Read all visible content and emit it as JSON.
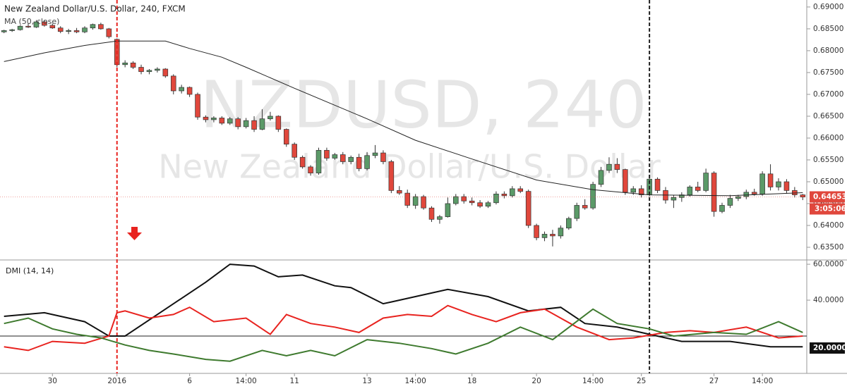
{
  "chart_data": [
    {
      "type": "candlestick",
      "title": "New Zealand Dollar/U.S. Dollar, 240, FXCM",
      "watermark": {
        "symbol": "NZDUSD, 240",
        "description": "New Zealand Dollar/U.S. Dollar"
      },
      "up_color": "#5b9a68",
      "down_color": "#e0473c",
      "open": [
        0.6843,
        0.6846,
        0.6848,
        0.6856,
        0.6854,
        0.6866,
        0.6858,
        0.6852,
        0.6844,
        0.6846,
        0.6843,
        0.6852,
        0.686,
        0.685,
        0.6826,
        0.6768,
        0.6772,
        0.6762,
        0.6752,
        0.6755,
        0.6758,
        0.6742,
        0.6708,
        0.6716,
        0.67,
        0.6648,
        0.6642,
        0.6646,
        0.6634,
        0.6644,
        0.6626,
        0.664,
        0.662,
        0.6644,
        0.665,
        0.662,
        0.6586,
        0.6556,
        0.6534,
        0.652,
        0.6572,
        0.6554,
        0.6562,
        0.6546,
        0.6556,
        0.653,
        0.656,
        0.6566,
        0.6546,
        0.648,
        0.6474,
        0.6446,
        0.6466,
        0.644,
        0.6414,
        0.642,
        0.645,
        0.6466,
        0.6456,
        0.6452,
        0.6444,
        0.6452,
        0.6472,
        0.6468,
        0.6484,
        0.6478,
        0.64,
        0.6372,
        0.638,
        0.6376,
        0.6394,
        0.6416,
        0.6446,
        0.644,
        0.6494,
        0.6526,
        0.654,
        0.6528,
        0.6476,
        0.6484,
        0.647,
        0.6506,
        0.648,
        0.6458,
        0.6464,
        0.647,
        0.6488,
        0.648,
        0.652,
        0.6432,
        0.6446,
        0.6462,
        0.6466,
        0.6476,
        0.6472,
        0.6518,
        0.6488,
        0.65,
        0.648,
        0.647
      ],
      "high": [
        0.6848,
        0.685,
        0.6858,
        0.6862,
        0.687,
        0.687,
        0.6862,
        0.6856,
        0.685,
        0.6852,
        0.6856,
        0.6862,
        0.6864,
        0.6852,
        0.6828,
        0.6778,
        0.6776,
        0.6768,
        0.6758,
        0.6762,
        0.676,
        0.6746,
        0.6722,
        0.6718,
        0.6704,
        0.6652,
        0.665,
        0.665,
        0.6648,
        0.6648,
        0.6646,
        0.665,
        0.6666,
        0.666,
        0.6652,
        0.6622,
        0.659,
        0.656,
        0.6538,
        0.6578,
        0.6578,
        0.6566,
        0.6568,
        0.656,
        0.6564,
        0.6568,
        0.6584,
        0.6572,
        0.655,
        0.649,
        0.6482,
        0.6472,
        0.647,
        0.6444,
        0.6424,
        0.6464,
        0.6472,
        0.6472,
        0.6464,
        0.6458,
        0.6456,
        0.6478,
        0.6478,
        0.649,
        0.649,
        0.6482,
        0.6404,
        0.6386,
        0.639,
        0.64,
        0.642,
        0.6452,
        0.646,
        0.65,
        0.6534,
        0.6556,
        0.6554,
        0.653,
        0.649,
        0.6492,
        0.6512,
        0.651,
        0.6488,
        0.647,
        0.6476,
        0.6492,
        0.65,
        0.653,
        0.6524,
        0.6452,
        0.647,
        0.647,
        0.6482,
        0.6484,
        0.6524,
        0.654,
        0.6508,
        0.6506,
        0.6488,
        0.6472
      ],
      "low": [
        0.684,
        0.6843,
        0.6846,
        0.6852,
        0.6852,
        0.6855,
        0.685,
        0.684,
        0.6838,
        0.684,
        0.684,
        0.6848,
        0.6848,
        0.6828,
        0.6762,
        0.6762,
        0.6758,
        0.6746,
        0.6746,
        0.675,
        0.6738,
        0.67,
        0.6702,
        0.6694,
        0.6642,
        0.6636,
        0.6636,
        0.663,
        0.663,
        0.662,
        0.6622,
        0.6614,
        0.6618,
        0.664,
        0.6614,
        0.658,
        0.655,
        0.653,
        0.6514,
        0.6516,
        0.6548,
        0.655,
        0.654,
        0.654,
        0.6524,
        0.6526,
        0.6554,
        0.654,
        0.6474,
        0.647,
        0.644,
        0.6438,
        0.6436,
        0.6408,
        0.6404,
        0.6418,
        0.6446,
        0.645,
        0.6446,
        0.644,
        0.644,
        0.6448,
        0.6462,
        0.6464,
        0.6474,
        0.6394,
        0.6366,
        0.6364,
        0.6352,
        0.637,
        0.639,
        0.641,
        0.6436,
        0.6436,
        0.6488,
        0.652,
        0.652,
        0.647,
        0.647,
        0.6464,
        0.6466,
        0.6474,
        0.645,
        0.644,
        0.6454,
        0.6466,
        0.6476,
        0.6476,
        0.642,
        0.6428,
        0.644,
        0.6456,
        0.646,
        0.6468,
        0.6468,
        0.648,
        0.648,
        0.6474,
        0.6464,
        0.6458
      ],
      "close": [
        0.6846,
        0.6848,
        0.6856,
        0.6854,
        0.6866,
        0.6858,
        0.6852,
        0.6844,
        0.6846,
        0.6843,
        0.6852,
        0.686,
        0.685,
        0.6832,
        0.6768,
        0.6772,
        0.6762,
        0.6752,
        0.6755,
        0.6758,
        0.6742,
        0.6708,
        0.6716,
        0.67,
        0.6648,
        0.6642,
        0.6646,
        0.6634,
        0.6644,
        0.6626,
        0.664,
        0.662,
        0.6644,
        0.665,
        0.662,
        0.6586,
        0.6556,
        0.6534,
        0.652,
        0.6572,
        0.6554,
        0.6562,
        0.6546,
        0.6556,
        0.653,
        0.656,
        0.6566,
        0.6546,
        0.648,
        0.6474,
        0.6446,
        0.6466,
        0.644,
        0.6414,
        0.642,
        0.645,
        0.6466,
        0.6456,
        0.6452,
        0.6444,
        0.6452,
        0.6472,
        0.6468,
        0.6484,
        0.6478,
        0.64,
        0.6372,
        0.638,
        0.6376,
        0.6394,
        0.6416,
        0.6446,
        0.644,
        0.6494,
        0.6526,
        0.654,
        0.6528,
        0.6476,
        0.6484,
        0.647,
        0.6506,
        0.648,
        0.6458,
        0.6464,
        0.647,
        0.6488,
        0.648,
        0.652,
        0.6432,
        0.6446,
        0.6462,
        0.6466,
        0.6476,
        0.6472,
        0.6518,
        0.6488,
        0.65,
        0.648,
        0.647,
        0.6465
      ],
      "ma": {
        "name": "MA (50, close)",
        "color": "#222222",
        "x": [
          0,
          5,
          10,
          14,
          20,
          23,
          27,
          30,
          36,
          45,
          51,
          58,
          66,
          73,
          80,
          90,
          99
        ],
        "values": [
          0.6775,
          0.6795,
          0.6812,
          0.6822,
          0.6822,
          0.6805,
          0.6785,
          0.6762,
          0.6714,
          0.6644,
          0.6595,
          0.6552,
          0.6504,
          0.6482,
          0.647,
          0.6468,
          0.6475
        ]
      },
      "last_price": {
        "value": 0.64653,
        "label": "0.64653"
      },
      "countdown": "3:05:06",
      "markers": [
        {
          "x": 14,
          "color": "#e8231f"
        },
        {
          "x": 80,
          "color": "#222222"
        }
      ],
      "xlim": [
        -0.5,
        99.5
      ],
      "ylim": [
        0.6321,
        0.6916
      ],
      "yticks": [
        {
          "value": 0.635,
          "label": "0.63500"
        },
        {
          "value": 0.64,
          "label": "0.64000"
        },
        {
          "value": 0.645,
          "label": "0.64500"
        },
        {
          "value": 0.65,
          "label": "0.65000"
        },
        {
          "value": 0.655,
          "label": "0.65500"
        },
        {
          "value": 0.66,
          "label": "0.66000"
        },
        {
          "value": 0.665,
          "label": "0.66500"
        },
        {
          "value": 0.67,
          "label": "0.67000"
        },
        {
          "value": 0.675,
          "label": "0.67500"
        },
        {
          "value": 0.68,
          "label": "0.68000"
        },
        {
          "value": 0.685,
          "label": "0.68500"
        },
        {
          "value": 0.69,
          "label": "0.69000"
        }
      ]
    },
    {
      "type": "line",
      "title": "DMI (14, 14)",
      "series": [
        {
          "color": "#111111",
          "x": [
            0,
            5,
            10,
            13,
            15,
            20,
            25,
            28,
            31,
            34,
            37,
            41,
            43,
            47,
            48,
            53,
            55,
            60,
            65,
            69,
            72,
            76,
            80,
            84,
            90,
            95,
            99
          ],
          "values": [
            31,
            33,
            28,
            20,
            20,
            35,
            50,
            60,
            59,
            53,
            54,
            48,
            47,
            38,
            39,
            44,
            46,
            42,
            34,
            36,
            27,
            25,
            21,
            17,
            17,
            14,
            14
          ]
        },
        {
          "color": "#e8231f",
          "x": [
            0,
            3,
            6,
            10,
            13,
            14,
            15,
            18,
            21,
            23,
            26,
            30,
            33,
            35,
            38,
            41,
            44,
            47,
            50,
            53,
            55,
            58,
            61,
            64,
            67,
            71,
            75,
            78,
            82,
            85,
            88,
            92,
            96,
            99
          ],
          "values": [
            14,
            12,
            17,
            16,
            20,
            33,
            34,
            30,
            32,
            36,
            28,
            30,
            21,
            32,
            27,
            25,
            22,
            30,
            32,
            31,
            37,
            32,
            28,
            33,
            35,
            25,
            18,
            19,
            22,
            23,
            22,
            25,
            19,
            20
          ]
        },
        {
          "color": "#3e7a2e",
          "x": [
            0,
            3,
            6,
            9,
            12,
            15,
            18,
            21,
            25,
            28,
            32,
            35,
            38,
            41,
            45,
            49,
            53,
            56,
            60,
            64,
            68,
            73,
            76,
            80,
            83,
            88,
            92,
            96,
            99
          ],
          "values": [
            27,
            30,
            24,
            21,
            19,
            15,
            12,
            10,
            7,
            6,
            12,
            9,
            12,
            9,
            18,
            16,
            13,
            10,
            16,
            25,
            18,
            35,
            27,
            24,
            20,
            22,
            21,
            28,
            22
          ]
        }
      ],
      "level": {
        "value": 20,
        "label": "20.0000"
      },
      "xlim": [
        -0.5,
        99.5
      ],
      "ylim": [
        -0.8,
        62
      ],
      "yticks": [
        {
          "value": 40,
          "label": "40.0000"
        },
        {
          "value": 60,
          "label": "60.0000"
        }
      ],
      "xticks": [
        {
          "value": 6,
          "label": "30"
        },
        {
          "value": 14,
          "label": "2016"
        },
        {
          "value": 23,
          "label": "6"
        },
        {
          "value": 30,
          "label": "14:00"
        },
        {
          "value": 36,
          "label": "11"
        },
        {
          "value": 45,
          "label": "13"
        },
        {
          "value": 51,
          "label": "14:00"
        },
        {
          "value": 58,
          "label": "18"
        },
        {
          "value": 66,
          "label": "20"
        },
        {
          "value": 73,
          "label": "14:00"
        },
        {
          "value": 79,
          "label": "25"
        },
        {
          "value": 88,
          "label": "27"
        },
        {
          "value": 94,
          "label": "14:00"
        }
      ]
    }
  ]
}
